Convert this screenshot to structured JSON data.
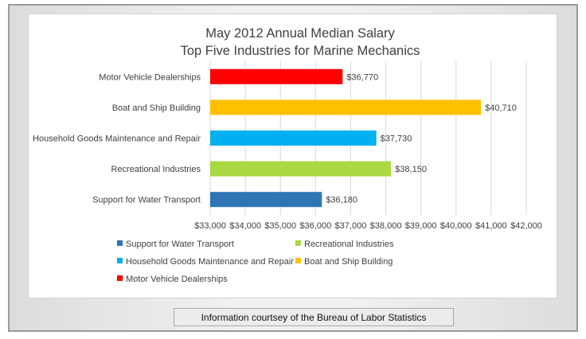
{
  "chart_data": {
    "type": "bar",
    "orientation": "horizontal",
    "title": "May 2012 Annual Median Salary",
    "subtitle": "Top Five Industries for Marine Mechanics",
    "categories": [
      "Motor Vehicle Dealerships",
      "Boat and Ship Building",
      "Household Goods Maintenance and Repair",
      "Recreational Industries",
      "Support for Water Transport"
    ],
    "values": [
      36770,
      40710,
      37730,
      38150,
      36180
    ],
    "value_labels": [
      "$36,770",
      "$40,710",
      "$37,730",
      "$38,150",
      "$36,180"
    ],
    "colors": [
      "#ff0000",
      "#ffc000",
      "#00b0f0",
      "#a9d843",
      "#2e75b6"
    ],
    "xlim": [
      33000,
      42000
    ],
    "x_ticks": [
      33000,
      34000,
      35000,
      36000,
      37000,
      38000,
      39000,
      40000,
      41000,
      42000
    ],
    "x_tick_labels": [
      "$33,000",
      "$34,000",
      "$35,000",
      "$36,000",
      "$37,000",
      "$38,000",
      "$39,000",
      "$40,000",
      "$41,000",
      "$42,000"
    ],
    "xlabel": "",
    "ylabel": "",
    "grid": true,
    "legend_position": "bottom",
    "legend": [
      {
        "label": "Support for Water Transport",
        "color": "#2e75b6"
      },
      {
        "label": "Recreational Industries",
        "color": "#a9d843"
      },
      {
        "label": "Household Goods Maintenance and Repair",
        "color": "#00b0f0"
      },
      {
        "label": "Boat and Ship Building",
        "color": "#ffc000"
      },
      {
        "label": "Motor Vehicle Dealerships",
        "color": "#ff0000"
      }
    ]
  },
  "footer": {
    "text": "Information courtsey of the Bureau of Labor Statistics"
  }
}
